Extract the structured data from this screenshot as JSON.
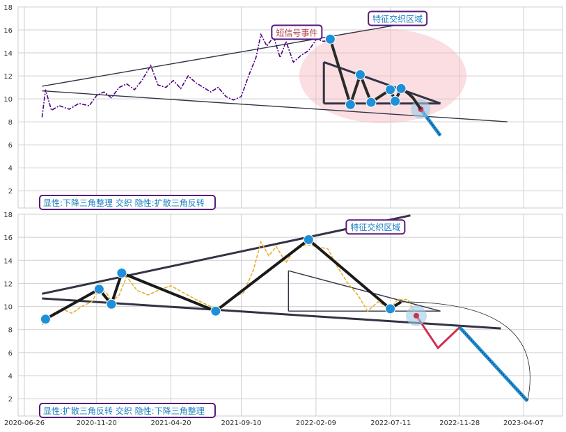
{
  "chart_data": [
    {
      "type": "line",
      "panel": "top",
      "ylim": [
        0.5,
        18
      ],
      "y_ticks": [
        "2",
        "4",
        "6",
        "8",
        "10",
        "12",
        "14",
        "16",
        "18"
      ],
      "grid": true,
      "colors": {
        "price": "#4b0082",
        "trend": "#333344",
        "pattern": "#2a2a2a",
        "node": "#1e90d8",
        "zone": "#f4b6bf"
      },
      "price_series": [
        [
          "2020-08-01",
          8.4
        ],
        [
          "2020-08-08",
          10.8
        ],
        [
          "2020-08-20",
          9.0
        ],
        [
          "2020-09-05",
          9.4
        ],
        [
          "2020-09-25",
          9.1
        ],
        [
          "2020-10-15",
          9.6
        ],
        [
          "2020-11-05",
          9.4
        ],
        [
          "2020-11-20",
          10.3
        ],
        [
          "2020-12-05",
          10.6
        ],
        [
          "2020-12-20",
          10.1
        ],
        [
          "2021-01-05",
          11.0
        ],
        [
          "2021-01-20",
          11.3
        ],
        [
          "2021-02-05",
          10.8
        ],
        [
          "2021-02-20",
          11.6
        ],
        [
          "2021-03-10",
          12.9
        ],
        [
          "2021-03-25",
          11.2
        ],
        [
          "2021-04-10",
          11.0
        ],
        [
          "2021-04-25",
          11.6
        ],
        [
          "2021-05-10",
          10.9
        ],
        [
          "2021-05-25",
          12.0
        ],
        [
          "2021-06-10",
          11.4
        ],
        [
          "2021-06-25",
          11.0
        ],
        [
          "2021-07-10",
          10.6
        ],
        [
          "2021-07-25",
          11.0
        ],
        [
          "2021-08-10",
          10.2
        ],
        [
          "2021-08-25",
          9.9
        ],
        [
          "2021-09-10",
          10.2
        ],
        [
          "2021-09-25",
          12.0
        ],
        [
          "2021-10-10",
          13.6
        ],
        [
          "2021-10-20",
          15.6
        ],
        [
          "2021-11-01",
          14.6
        ],
        [
          "2021-11-15",
          15.4
        ],
        [
          "2021-11-28",
          13.6
        ],
        [
          "2021-12-10",
          15.0
        ],
        [
          "2021-12-25",
          13.2
        ],
        [
          "2022-01-10",
          13.8
        ],
        [
          "2022-01-25",
          14.2
        ],
        [
          "2022-02-10",
          15.2
        ],
        [
          "2022-02-25",
          15.0
        ],
        [
          "2022-03-10",
          15.2
        ]
      ],
      "pattern_line": [
        [
          "2022-03-10",
          15.2
        ],
        [
          "2022-04-20",
          9.5
        ],
        [
          "2022-05-10",
          12.1
        ],
        [
          "2022-06-01",
          9.7
        ],
        [
          "2022-07-10",
          10.8
        ],
        [
          "2022-07-20",
          9.8
        ],
        [
          "2022-08-01",
          10.9
        ],
        [
          "2022-08-15",
          10.5
        ],
        [
          "2022-08-25",
          10.1
        ],
        [
          "2022-09-10",
          9.1
        ]
      ],
      "nodes": [
        [
          "2022-03-10",
          15.2
        ],
        [
          "2022-04-20",
          9.5
        ],
        [
          "2022-05-10",
          12.1
        ],
        [
          "2022-06-01",
          9.7
        ],
        [
          "2022-07-10",
          10.8
        ],
        [
          "2022-07-20",
          9.8
        ],
        [
          "2022-08-01",
          10.9
        ]
      ],
      "trendlines": [
        [
          [
            "2020-08-01",
            11.1
          ],
          [
            "2022-07-20",
            16.4
          ]
        ],
        [
          [
            "2020-08-01",
            10.7
          ],
          [
            "2023-03-05",
            8.0
          ]
        ],
        [
          [
            "2022-02-25",
            13.2
          ],
          [
            "2022-10-20",
            9.6
          ]
        ],
        [
          [
            "2022-02-25",
            9.6
          ],
          [
            "2022-10-20",
            9.6
          ]
        ],
        [
          [
            "2022-02-25",
            13.2
          ],
          [
            "2022-02-25",
            9.6
          ]
        ]
      ],
      "projection": [
        [
          "2022-09-10",
          9.1
        ],
        [
          "2022-10-20",
          6.8
        ]
      ],
      "projection_arc_end": [
        "2022-10-20",
        6.8
      ],
      "annotations": [
        {
          "text": "短信号事件",
          "x": "2022-01-01",
          "y": 15.8,
          "color": "#b03a48",
          "border": "#5a1a7a"
        },
        {
          "text": "特征交织区域",
          "x": "2022-07-25",
          "y": 17.0,
          "color": "#1a7fc0",
          "border": "#5a1a7a"
        }
      ],
      "caption": "显性:下降三角整理 交织 隐性:扩散三角反转"
    },
    {
      "type": "line",
      "panel": "bottom",
      "ylim": [
        0.5,
        18
      ],
      "y_ticks": [
        "2",
        "4",
        "6",
        "8",
        "10",
        "12",
        "14",
        "16",
        "18"
      ],
      "x_ticks": [
        "2020-06-26",
        "2020-11-20",
        "2021-04-20",
        "2021-09-10",
        "2022-02-09",
        "2022-07-11",
        "2022-11-28",
        "2023-04-07"
      ],
      "grid": true,
      "colors": {
        "price": "#e8b030",
        "trend": "#333344",
        "pattern": "#1a1a1a",
        "node": "#1e90d8",
        "projection_up": "#1e90d8",
        "projection_down": "#d03050"
      },
      "price_series": [
        [
          "2020-08-01",
          8.4
        ],
        [
          "2020-08-20",
          9.3
        ],
        [
          "2020-09-10",
          9.8
        ],
        [
          "2020-10-01",
          9.4
        ],
        [
          "2020-10-20",
          10.0
        ],
        [
          "2020-11-10",
          10.4
        ],
        [
          "2020-11-25",
          11.5
        ],
        [
          "2020-12-10",
          11.2
        ],
        [
          "2020-12-20",
          10.4
        ],
        [
          "2021-01-05",
          11.0
        ],
        [
          "2021-01-20",
          12.6
        ],
        [
          "2021-02-10",
          11.4
        ],
        [
          "2021-03-05",
          11.0
        ],
        [
          "2021-03-25",
          11.4
        ],
        [
          "2021-04-20",
          11.8
        ],
        [
          "2021-05-15",
          11.2
        ],
        [
          "2021-06-10",
          10.6
        ],
        [
          "2021-07-10",
          10.0
        ],
        [
          "2021-08-05",
          10.0
        ],
        [
          "2021-08-25",
          10.8
        ],
        [
          "2021-09-15",
          11.2
        ],
        [
          "2021-10-05",
          13.2
        ],
        [
          "2021-10-20",
          15.6
        ],
        [
          "2021-11-05",
          14.4
        ],
        [
          "2021-11-20",
          15.2
        ],
        [
          "2021-12-10",
          13.8
        ],
        [
          "2021-12-25",
          14.8
        ],
        [
          "2022-01-20",
          15.4
        ],
        [
          "2022-02-09",
          15.2
        ],
        [
          "2022-03-05",
          15.0
        ],
        [
          "2022-03-25",
          13.4
        ],
        [
          "2022-04-15",
          12.0
        ],
        [
          "2022-05-05",
          11.0
        ],
        [
          "2022-05-25",
          9.6
        ],
        [
          "2022-06-15",
          10.4
        ],
        [
          "2022-07-10",
          9.8
        ],
        [
          "2022-07-25",
          10.6
        ],
        [
          "2022-08-15",
          10.6
        ],
        [
          "2022-09-01",
          9.2
        ]
      ],
      "pattern_line": [
        [
          "2020-08-08",
          8.9
        ],
        [
          "2020-11-25",
          11.5
        ],
        [
          "2020-12-20",
          10.2
        ],
        [
          "2021-01-10",
          12.9
        ],
        [
          "2021-07-20",
          9.6
        ],
        [
          "2022-01-25",
          15.8
        ],
        [
          "2022-07-10",
          9.8
        ],
        [
          "2022-08-01",
          10.4
        ]
      ],
      "nodes": [
        [
          "2020-08-08",
          8.9
        ],
        [
          "2020-11-25",
          11.5
        ],
        [
          "2020-12-20",
          10.2
        ],
        [
          "2021-01-10",
          12.9
        ],
        [
          "2021-07-20",
          9.6
        ],
        [
          "2022-01-25",
          15.8
        ],
        [
          "2022-07-10",
          9.8
        ]
      ],
      "trendlines": [
        [
          [
            "2020-08-01",
            11.1
          ],
          [
            "2022-08-20",
            17.9
          ]
        ],
        [
          [
            "2020-08-01",
            10.7
          ],
          [
            "2023-02-20",
            8.1
          ]
        ],
        [
          [
            "2021-12-15",
            13.1
          ],
          [
            "2022-10-20",
            9.6
          ]
        ],
        [
          [
            "2021-12-15",
            9.6
          ],
          [
            "2022-10-20",
            9.6
          ]
        ],
        [
          [
            "2021-12-15",
            13.1
          ],
          [
            "2021-12-15",
            9.6
          ]
        ]
      ],
      "projection_down": [
        [
          "2022-09-01",
          9.2
        ],
        [
          "2022-10-15",
          6.4
        ],
        [
          "2022-11-28",
          8.2
        ]
      ],
      "projection_up": [
        [
          "2022-11-28",
          8.2
        ],
        [
          "2023-04-15",
          1.8
        ]
      ],
      "annotations": [
        {
          "text": "特征交织区域",
          "x": "2022-06-10",
          "y": 16.9,
          "color": "#1a7fc0",
          "border": "#5a1a7a"
        }
      ],
      "caption": "显性:扩散三角反转 交织 隐性:下降三角整理"
    }
  ]
}
